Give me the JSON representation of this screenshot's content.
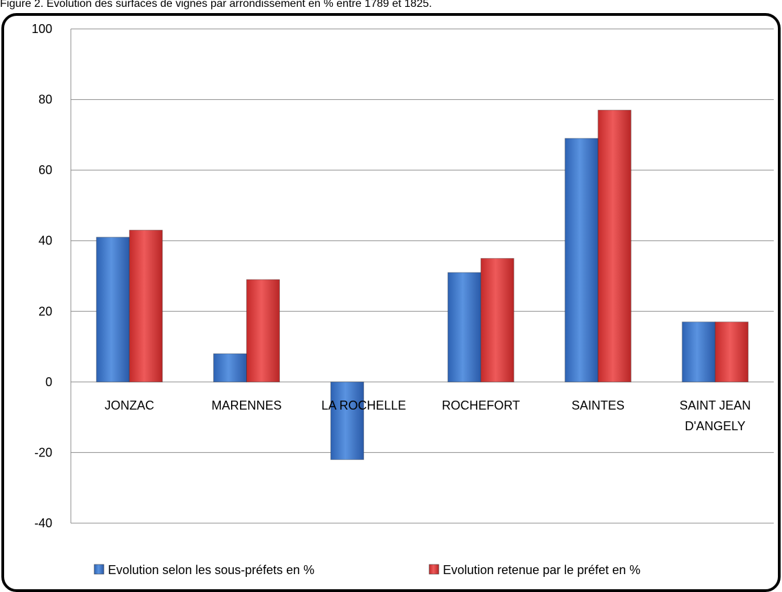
{
  "caption": "Figure 2. Evolution des surfaces de vignes par arrondissement en % entre 1789 et 1825.",
  "chart_data": {
    "type": "bar",
    "title": "",
    "xlabel": "",
    "ylabel": "",
    "ylim": [
      -40,
      100
    ],
    "yticks": [
      -40,
      -20,
      0,
      20,
      40,
      60,
      80,
      100
    ],
    "grid": true,
    "legend_position": "bottom",
    "categories": [
      "JONZAC",
      "MARENNES",
      "LA ROCHELLE",
      "ROCHEFORT",
      "SAINTES",
      "SAINT JEAN D'ANGELY"
    ],
    "series": [
      {
        "name": "Evolution selon les sous-préfets en %",
        "color": "#3a73c9",
        "values": [
          41,
          8,
          -22,
          31,
          69,
          17
        ]
      },
      {
        "name": "Evolution retenue par le préfet en %",
        "color": "#d93a3a",
        "values": [
          43,
          29,
          0,
          35,
          77,
          17
        ]
      }
    ]
  }
}
